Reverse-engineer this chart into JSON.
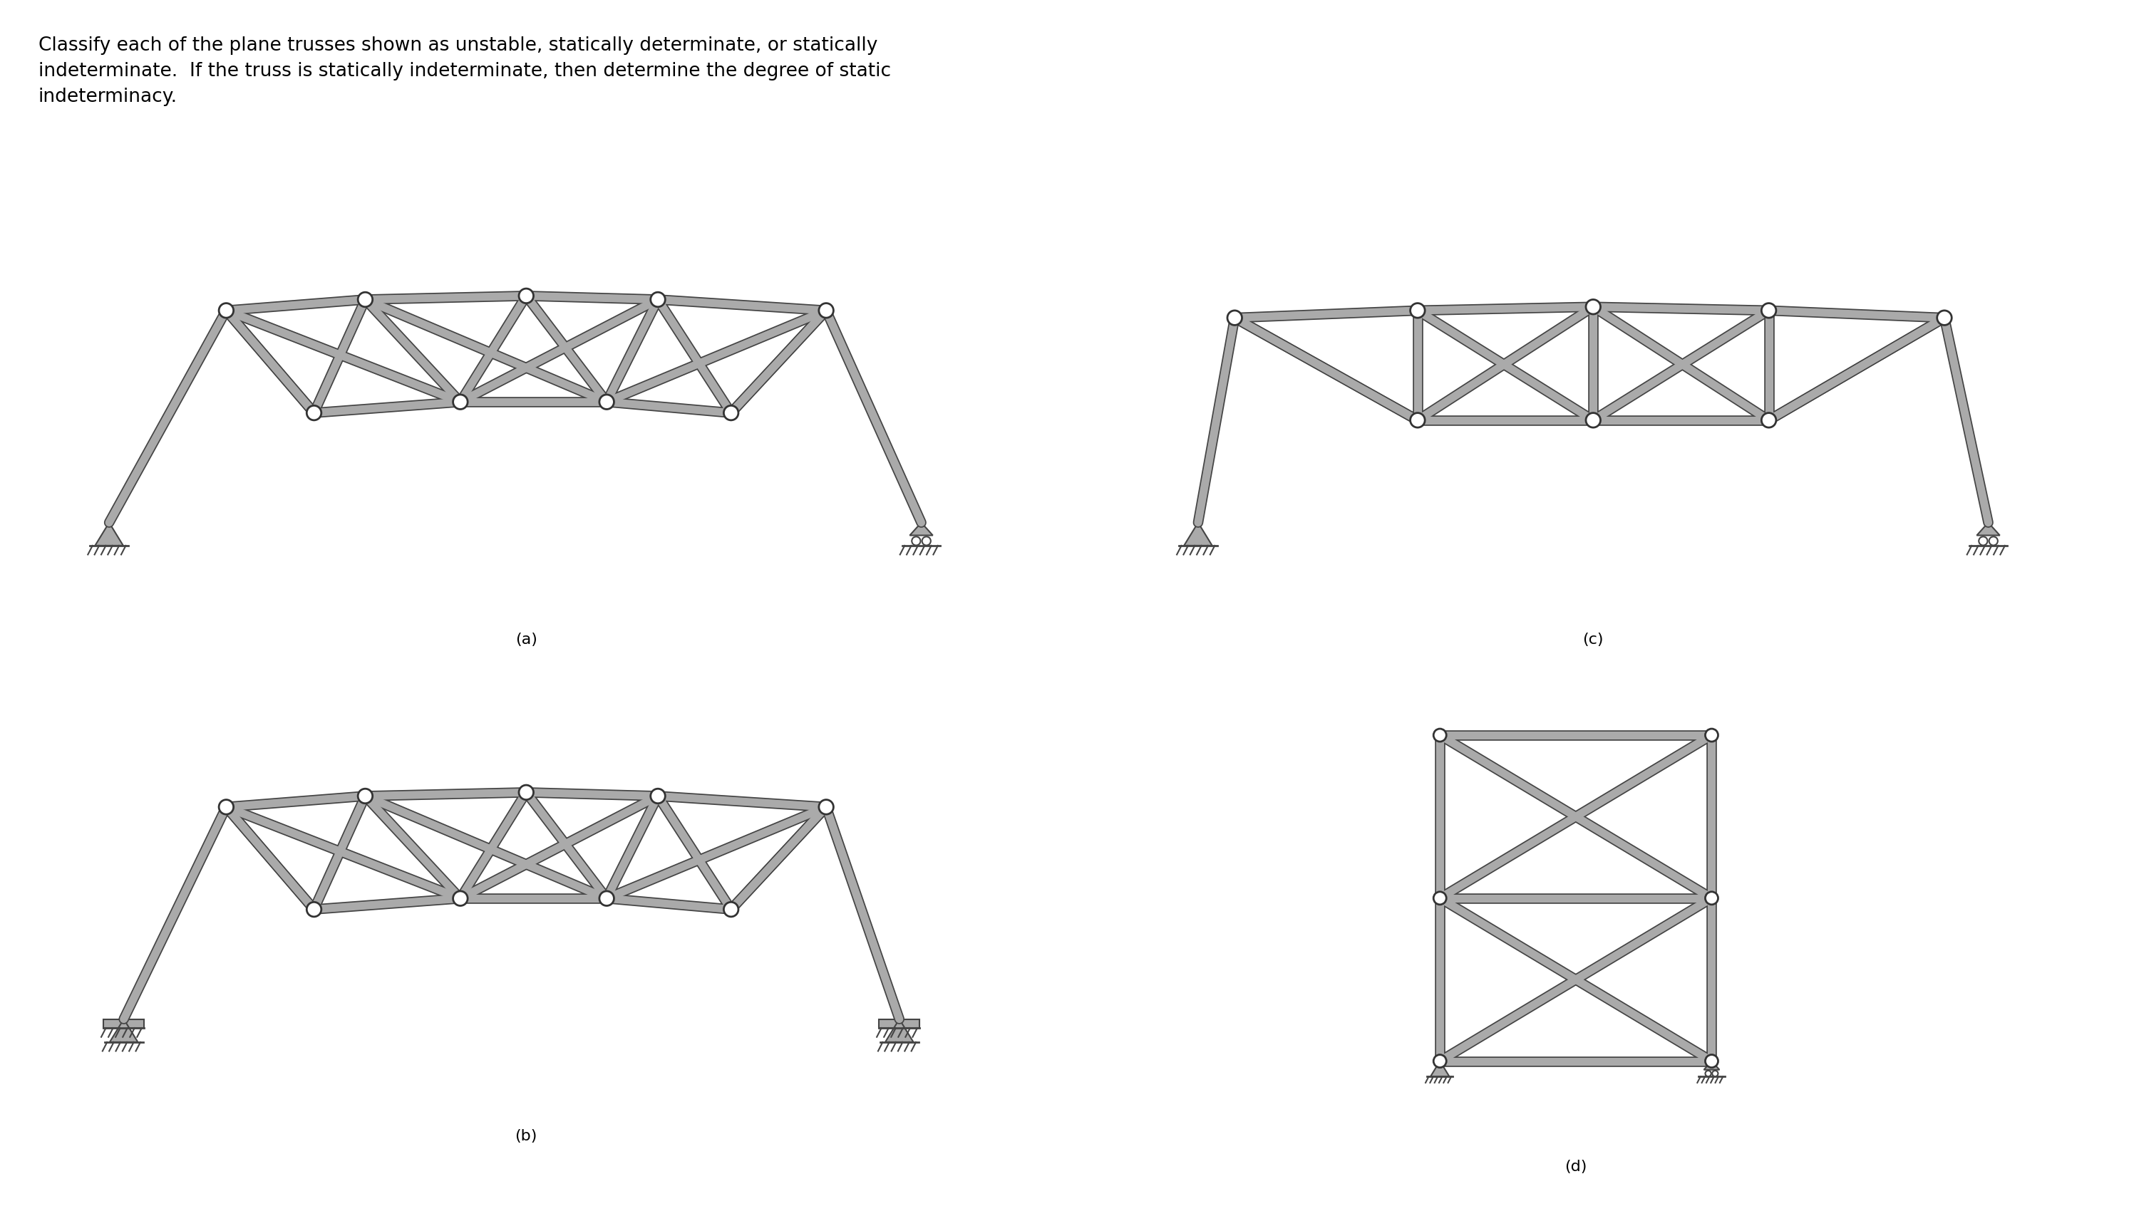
{
  "title_line1": "Classify each of the plane trusses shown as unstable, statically determinate, or statically",
  "title_line2": "indeterminate.  If the truss is statically indeterminate, then determine the degree of static",
  "title_line3": "indeterminacy.",
  "labels": [
    "(a)",
    "(b)",
    "(c)",
    "(d)"
  ],
  "bg_color": "#ffffff",
  "member_color": "#aaaaaa",
  "member_lw": 8,
  "member_edge_color": "#444444",
  "member_edge_lw": 1.5,
  "node_color": "#ffffff",
  "node_ec": "#333333",
  "support_color": "#aaaaaa",
  "support_ec": "#444444",
  "text_color": "#000000",
  "label_fontsize": 16,
  "title_fontsize": 19
}
